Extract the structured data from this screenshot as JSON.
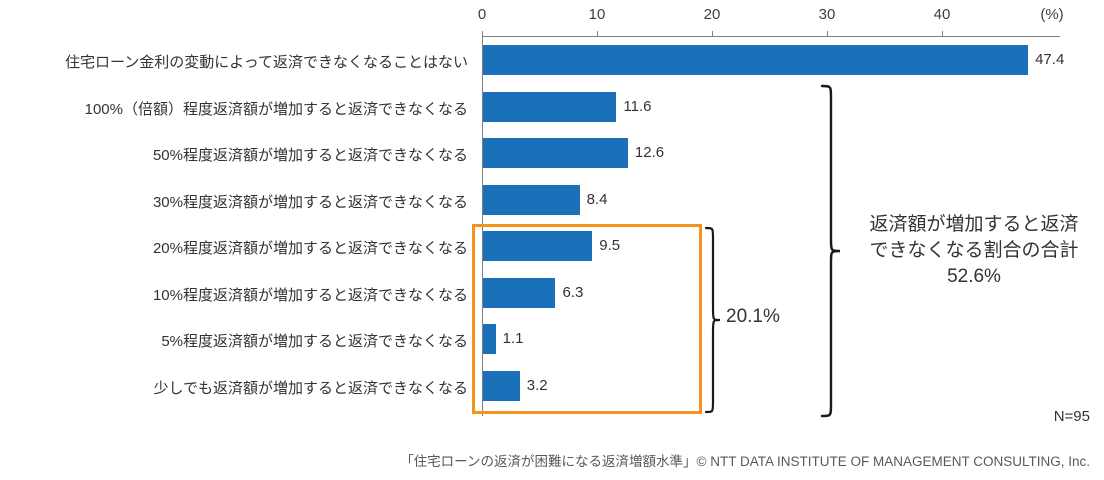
{
  "chart_data": {
    "type": "bar",
    "orientation": "horizontal",
    "title": "",
    "xlabel": "(%)",
    "ylabel": "",
    "xlim": [
      0,
      50
    ],
    "x_ticks": [
      "0",
      "10",
      "20",
      "30",
      "40"
    ],
    "x_unit_label": "(%)",
    "grid": false,
    "legend": "none",
    "bar_color": "#1A70B9",
    "categories": [
      "住宅ローン金利の変動によって返済できなくなることはない",
      "100%（倍額）程度返済額が増加すると返済できなくなる",
      "50%程度返済額が増加すると返済できなくなる",
      "30%程度返済額が増加すると返済できなくなる",
      "20%程度返済額が増加すると返済できなくなる",
      "10%程度返済額が増加すると返済できなくなる",
      "5%程度返済額が増加すると返済できなくなる",
      "少しでも返済額が増加すると返済できなくなる"
    ],
    "values": [
      47.4,
      11.6,
      12.6,
      8.4,
      9.5,
      6.3,
      1.1,
      3.2
    ],
    "value_labels": [
      "47.4",
      "11.6",
      "12.6",
      "8.4",
      "9.5",
      "6.3",
      "1.1",
      "3.2"
    ],
    "annotations": {
      "highlight_color": "#F5941D",
      "highlighted_categories_group_total": "20.1%",
      "total_label_lines": [
        "返済額が増加すると返済",
        "できなくなる割合の合計",
        "52.6%"
      ],
      "sample_size": "N=95"
    }
  },
  "footer": {
    "caption": "「住宅ローンの返済が困難になる返済増額水準」© NTT DATA INSTITUTE OF MANAGEMENT CONSULTING, Inc."
  }
}
